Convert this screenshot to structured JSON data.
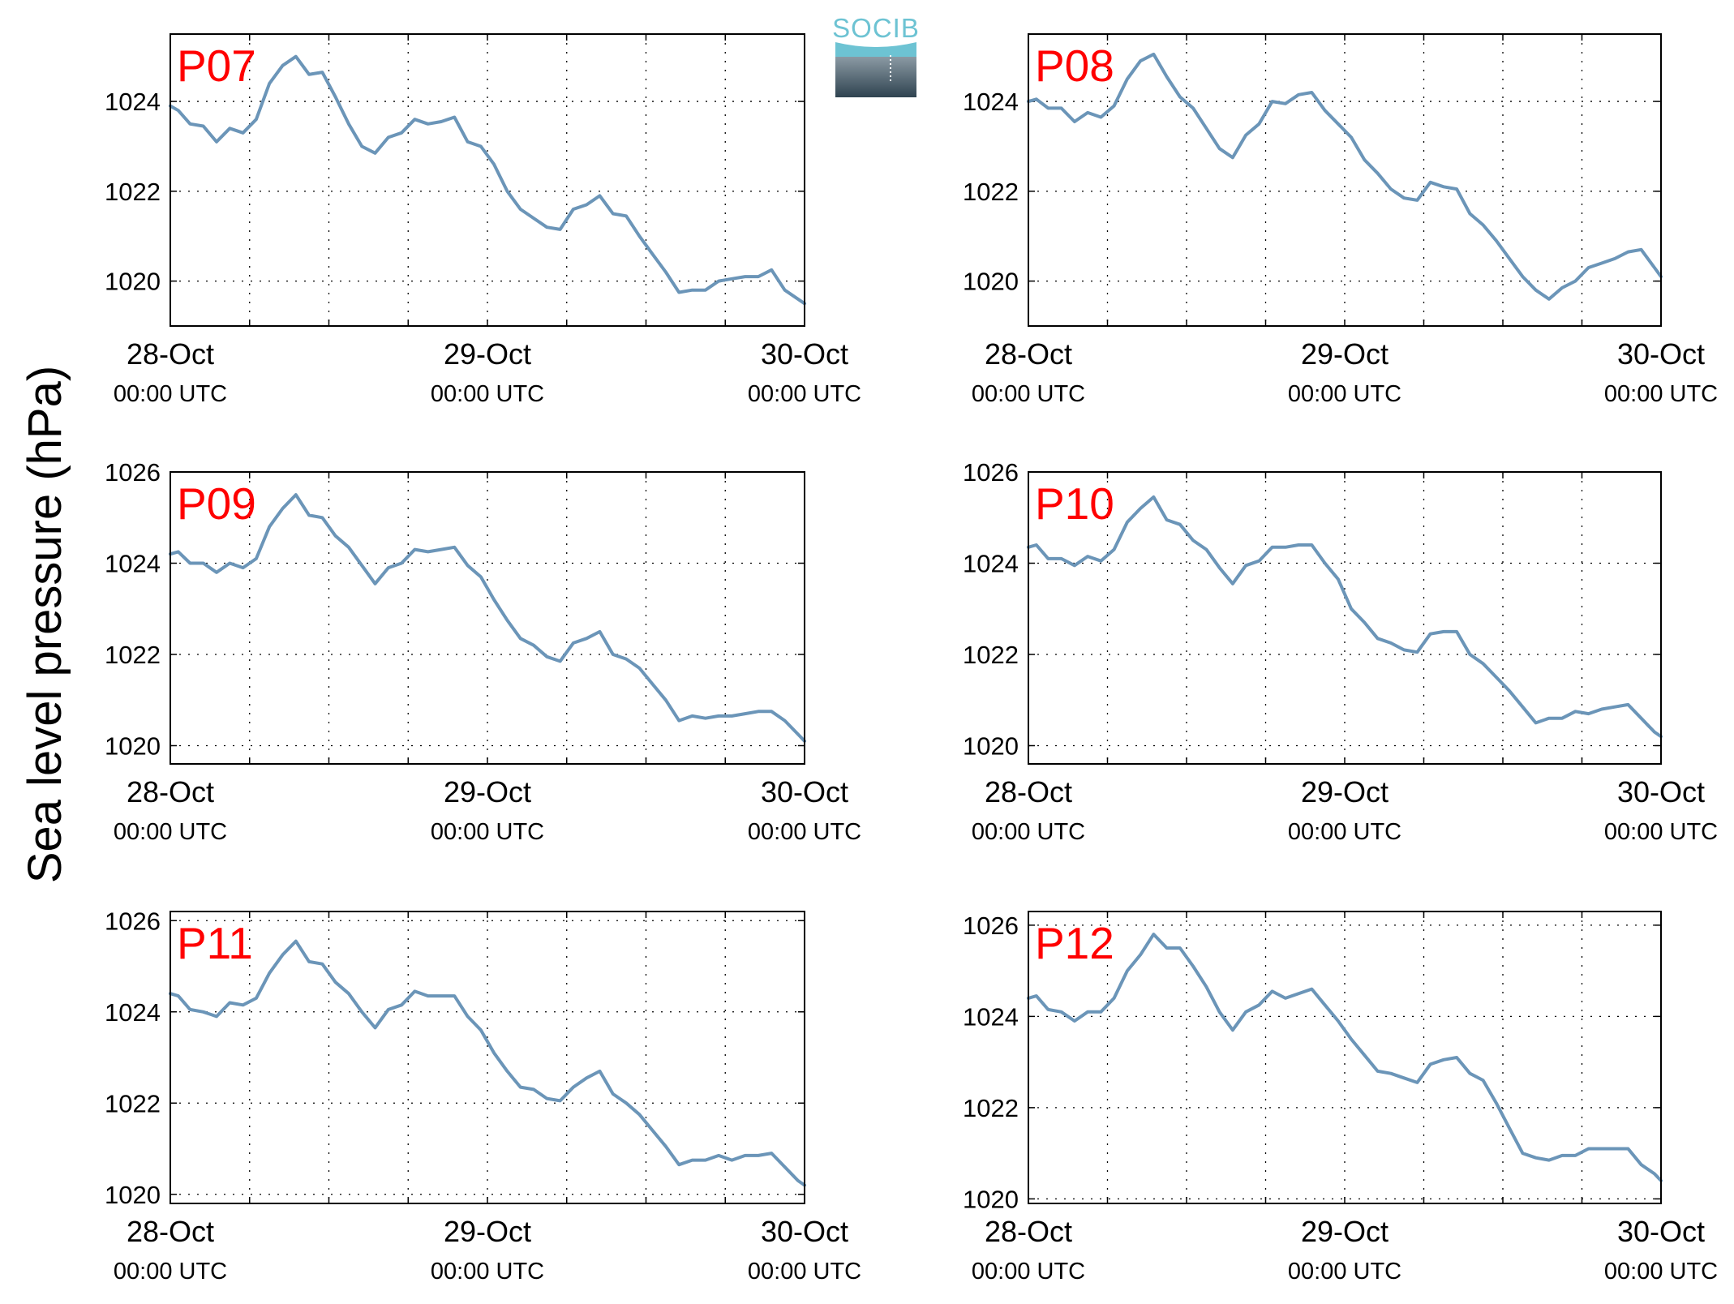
{
  "ylabel": "Sea level pressure (hPa)",
  "logo": {
    "text": "SOCIB",
    "accent_color": "#6dc3d3",
    "body_top_color": "#8b9aa4",
    "body_bottom_color": "#2f4350"
  },
  "line_color": "#6b95b8",
  "label_color": "#ff0000",
  "x_tick_dates": [
    "28-Oct",
    "29-Oct",
    "30-Oct"
  ],
  "x_tick_time": "00:00 UTC",
  "chart_data": [
    {
      "type": "line",
      "label": "P07",
      "xlim": [
        0,
        48
      ],
      "ylim": [
        1019,
        1025.5
      ],
      "yticks": [
        1020,
        1022,
        1024
      ],
      "grid": true,
      "series": [
        {
          "x": [
            0,
            0.6,
            1.5,
            2.5,
            3.5,
            4.5,
            5.5,
            6.5,
            7.5,
            8.5,
            9.5,
            10.5,
            11.5,
            12.5,
            13.5,
            14.5,
            15.5,
            16.5,
            17.5,
            18.5,
            19.5,
            20.5,
            21.5,
            22.5,
            23.5,
            24.5,
            25.5,
            26.5,
            27.5,
            28.5,
            29.5,
            30.5,
            31.5,
            32.5,
            33.5,
            34.5,
            35.5,
            36.5,
            37.5,
            38.5,
            39.5,
            40.5,
            41.5,
            42.5,
            43.5,
            44.5,
            45.5,
            46.5,
            47.5,
            48
          ],
          "y": [
            1023.9,
            1023.8,
            1023.5,
            1023.45,
            1023.1,
            1023.4,
            1023.3,
            1023.6,
            1024.4,
            1024.8,
            1025.0,
            1024.6,
            1024.65,
            1024.1,
            1023.5,
            1023.0,
            1022.85,
            1023.2,
            1023.3,
            1023.6,
            1023.5,
            1023.55,
            1023.65,
            1023.1,
            1023.0,
            1022.6,
            1022.0,
            1021.6,
            1021.4,
            1021.2,
            1021.15,
            1021.6,
            1021.7,
            1021.9,
            1021.5,
            1021.45,
            1021.0,
            1020.6,
            1020.2,
            1019.75,
            1019.8,
            1019.8,
            1020.0,
            1020.05,
            1020.1,
            1020.1,
            1020.25,
            1019.8,
            1019.6,
            1019.5
          ]
        }
      ]
    },
    {
      "type": "line",
      "label": "P08",
      "xlim": [
        0,
        48
      ],
      "ylim": [
        1019,
        1025.5
      ],
      "yticks": [
        1020,
        1022,
        1024
      ],
      "grid": true,
      "series": [
        {
          "x": [
            0,
            0.6,
            1.5,
            2.5,
            3.5,
            4.5,
            5.5,
            6.5,
            7.5,
            8.5,
            9.5,
            10.5,
            11.5,
            12.5,
            13.5,
            14.5,
            15.5,
            16.5,
            17.5,
            18.5,
            19.5,
            20.5,
            21.5,
            22.5,
            23.5,
            24.5,
            25.5,
            26.5,
            27.5,
            28.5,
            29.5,
            30.5,
            31.5,
            32.5,
            33.5,
            34.5,
            35.5,
            36.5,
            37.5,
            38.5,
            39.5,
            40.5,
            41.5,
            42.5,
            43.5,
            44.5,
            45.5,
            46.5,
            47.5,
            48
          ],
          "y": [
            1024.0,
            1024.05,
            1023.85,
            1023.85,
            1023.55,
            1023.75,
            1023.65,
            1023.9,
            1024.5,
            1024.9,
            1025.05,
            1024.55,
            1024.1,
            1023.85,
            1023.4,
            1022.95,
            1022.75,
            1023.25,
            1023.5,
            1024.0,
            1023.95,
            1024.15,
            1024.2,
            1023.8,
            1023.5,
            1023.2,
            1022.7,
            1022.4,
            1022.05,
            1021.85,
            1021.8,
            1022.2,
            1022.1,
            1022.05,
            1021.5,
            1021.25,
            1020.9,
            1020.5,
            1020.1,
            1019.8,
            1019.6,
            1019.85,
            1020.0,
            1020.3,
            1020.4,
            1020.5,
            1020.65,
            1020.7,
            1020.3,
            1020.1
          ]
        }
      ]
    },
    {
      "type": "line",
      "label": "P09",
      "xlim": [
        0,
        48
      ],
      "ylim": [
        1019.6,
        1026
      ],
      "yticks": [
        1020,
        1022,
        1024,
        1026
      ],
      "grid": true,
      "series": [
        {
          "x": [
            0,
            0.6,
            1.5,
            2.5,
            3.5,
            4.5,
            5.5,
            6.5,
            7.5,
            8.5,
            9.5,
            10.5,
            11.5,
            12.5,
            13.5,
            14.5,
            15.5,
            16.5,
            17.5,
            18.5,
            19.5,
            20.5,
            21.5,
            22.5,
            23.5,
            24.5,
            25.5,
            26.5,
            27.5,
            28.5,
            29.5,
            30.5,
            31.5,
            32.5,
            33.5,
            34.5,
            35.5,
            36.5,
            37.5,
            38.5,
            39.5,
            40.5,
            41.5,
            42.5,
            43.5,
            44.5,
            45.5,
            46.5,
            47.5,
            48
          ],
          "y": [
            1024.2,
            1024.25,
            1024.0,
            1024.0,
            1023.8,
            1024.0,
            1023.9,
            1024.1,
            1024.8,
            1025.2,
            1025.5,
            1025.05,
            1025.0,
            1024.6,
            1024.35,
            1023.95,
            1023.55,
            1023.9,
            1024.0,
            1024.3,
            1024.25,
            1024.3,
            1024.35,
            1023.95,
            1023.7,
            1023.2,
            1022.75,
            1022.35,
            1022.2,
            1021.95,
            1021.85,
            1022.25,
            1022.35,
            1022.5,
            1022.0,
            1021.9,
            1021.7,
            1021.35,
            1021.0,
            1020.55,
            1020.65,
            1020.6,
            1020.65,
            1020.65,
            1020.7,
            1020.75,
            1020.75,
            1020.55,
            1020.25,
            1020.1
          ]
        }
      ]
    },
    {
      "type": "line",
      "label": "P10",
      "xlim": [
        0,
        48
      ],
      "ylim": [
        1019.6,
        1026
      ],
      "yticks": [
        1020,
        1022,
        1024,
        1026
      ],
      "grid": true,
      "series": [
        {
          "x": [
            0,
            0.6,
            1.5,
            2.5,
            3.5,
            4.5,
            5.5,
            6.5,
            7.5,
            8.5,
            9.5,
            10.5,
            11.5,
            12.5,
            13.5,
            14.5,
            15.5,
            16.5,
            17.5,
            18.5,
            19.5,
            20.5,
            21.5,
            22.5,
            23.5,
            24.5,
            25.5,
            26.5,
            27.5,
            28.5,
            29.5,
            30.5,
            31.5,
            32.5,
            33.5,
            34.5,
            35.5,
            36.5,
            37.5,
            38.5,
            39.5,
            40.5,
            41.5,
            42.5,
            43.5,
            44.5,
            45.5,
            46.5,
            47.5,
            48
          ],
          "y": [
            1024.35,
            1024.4,
            1024.1,
            1024.1,
            1023.95,
            1024.15,
            1024.05,
            1024.3,
            1024.9,
            1025.2,
            1025.45,
            1024.95,
            1024.85,
            1024.5,
            1024.3,
            1023.9,
            1023.55,
            1023.95,
            1024.05,
            1024.35,
            1024.35,
            1024.4,
            1024.4,
            1024.0,
            1023.65,
            1023.0,
            1022.7,
            1022.35,
            1022.25,
            1022.1,
            1022.05,
            1022.45,
            1022.5,
            1022.5,
            1022.0,
            1021.8,
            1021.5,
            1021.2,
            1020.85,
            1020.5,
            1020.6,
            1020.6,
            1020.75,
            1020.7,
            1020.8,
            1020.85,
            1020.9,
            1020.6,
            1020.3,
            1020.2
          ]
        }
      ]
    },
    {
      "type": "line",
      "label": "P11",
      "xlim": [
        0,
        48
      ],
      "ylim": [
        1019.8,
        1026.2
      ],
      "yticks": [
        1020,
        1022,
        1024,
        1026
      ],
      "grid": true,
      "series": [
        {
          "x": [
            0,
            0.6,
            1.5,
            2.5,
            3.5,
            4.5,
            5.5,
            6.5,
            7.5,
            8.5,
            9.5,
            10.5,
            11.5,
            12.5,
            13.5,
            14.5,
            15.5,
            16.5,
            17.5,
            18.5,
            19.5,
            20.5,
            21.5,
            22.5,
            23.5,
            24.5,
            25.5,
            26.5,
            27.5,
            28.5,
            29.5,
            30.5,
            31.5,
            32.5,
            33.5,
            34.5,
            35.5,
            36.5,
            37.5,
            38.5,
            39.5,
            40.5,
            41.5,
            42.5,
            43.5,
            44.5,
            45.5,
            46.5,
            47.5,
            48
          ],
          "y": [
            1024.4,
            1024.35,
            1024.05,
            1024.0,
            1023.9,
            1024.2,
            1024.15,
            1024.3,
            1024.85,
            1025.25,
            1025.55,
            1025.1,
            1025.05,
            1024.65,
            1024.4,
            1024.0,
            1023.65,
            1024.05,
            1024.15,
            1024.45,
            1024.35,
            1024.35,
            1024.35,
            1023.9,
            1023.6,
            1023.1,
            1022.7,
            1022.35,
            1022.3,
            1022.1,
            1022.05,
            1022.35,
            1022.55,
            1022.7,
            1022.2,
            1022.0,
            1021.75,
            1021.4,
            1021.05,
            1020.65,
            1020.75,
            1020.75,
            1020.85,
            1020.75,
            1020.85,
            1020.85,
            1020.9,
            1020.6,
            1020.3,
            1020.2
          ]
        }
      ]
    },
    {
      "type": "line",
      "label": "P12",
      "xlim": [
        0,
        48
      ],
      "ylim": [
        1019.9,
        1026.3
      ],
      "yticks": [
        1020,
        1022,
        1024,
        1026
      ],
      "grid": true,
      "series": [
        {
          "x": [
            0,
            0.6,
            1.5,
            2.5,
            3.5,
            4.5,
            5.5,
            6.5,
            7.5,
            8.5,
            9.5,
            10.5,
            11.5,
            12.5,
            13.5,
            14.5,
            15.5,
            16.5,
            17.5,
            18.5,
            19.5,
            20.5,
            21.5,
            22.5,
            23.5,
            24.5,
            25.5,
            26.5,
            27.5,
            28.5,
            29.5,
            30.5,
            31.5,
            32.5,
            33.5,
            34.5,
            35.5,
            36.5,
            37.5,
            38.5,
            39.5,
            40.5,
            41.5,
            42.5,
            43.5,
            44.5,
            45.5,
            46.5,
            47.5,
            48
          ],
          "y": [
            1024.4,
            1024.45,
            1024.15,
            1024.1,
            1023.9,
            1024.1,
            1024.1,
            1024.4,
            1025.0,
            1025.35,
            1025.8,
            1025.5,
            1025.5,
            1025.1,
            1024.65,
            1024.1,
            1023.7,
            1024.1,
            1024.25,
            1024.55,
            1024.4,
            1024.5,
            1024.6,
            1024.25,
            1023.9,
            1023.5,
            1023.15,
            1022.8,
            1022.75,
            1022.65,
            1022.55,
            1022.95,
            1023.05,
            1023.1,
            1022.75,
            1022.6,
            1022.1,
            1021.55,
            1021.0,
            1020.9,
            1020.85,
            1020.95,
            1020.95,
            1021.1,
            1021.1,
            1021.1,
            1021.1,
            1020.75,
            1020.55,
            1020.4
          ]
        }
      ]
    }
  ]
}
